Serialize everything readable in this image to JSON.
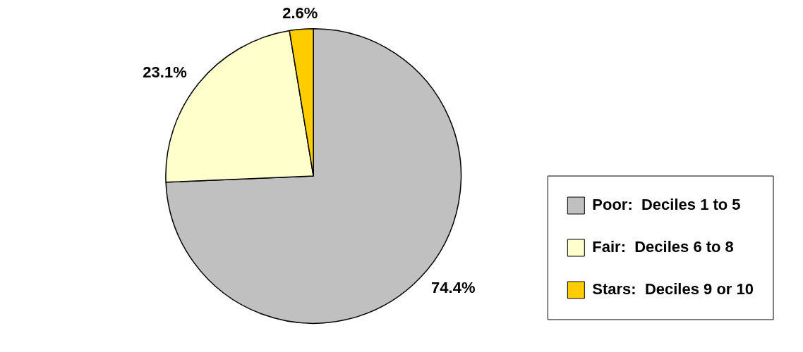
{
  "chart_data": {
    "type": "pie",
    "categories": [
      "Poor:  Deciles 1 to 5",
      "Fair:  Deciles 6 to 8",
      "Stars:  Deciles 9 or 10"
    ],
    "values": [
      74.4,
      23.1,
      2.6
    ],
    "colors": [
      "#c0c0c0",
      "#ffffcc",
      "#ffcc00"
    ],
    "value_labels": [
      "74.4%",
      "23.1%",
      "2.6%"
    ],
    "legend": "right"
  }
}
